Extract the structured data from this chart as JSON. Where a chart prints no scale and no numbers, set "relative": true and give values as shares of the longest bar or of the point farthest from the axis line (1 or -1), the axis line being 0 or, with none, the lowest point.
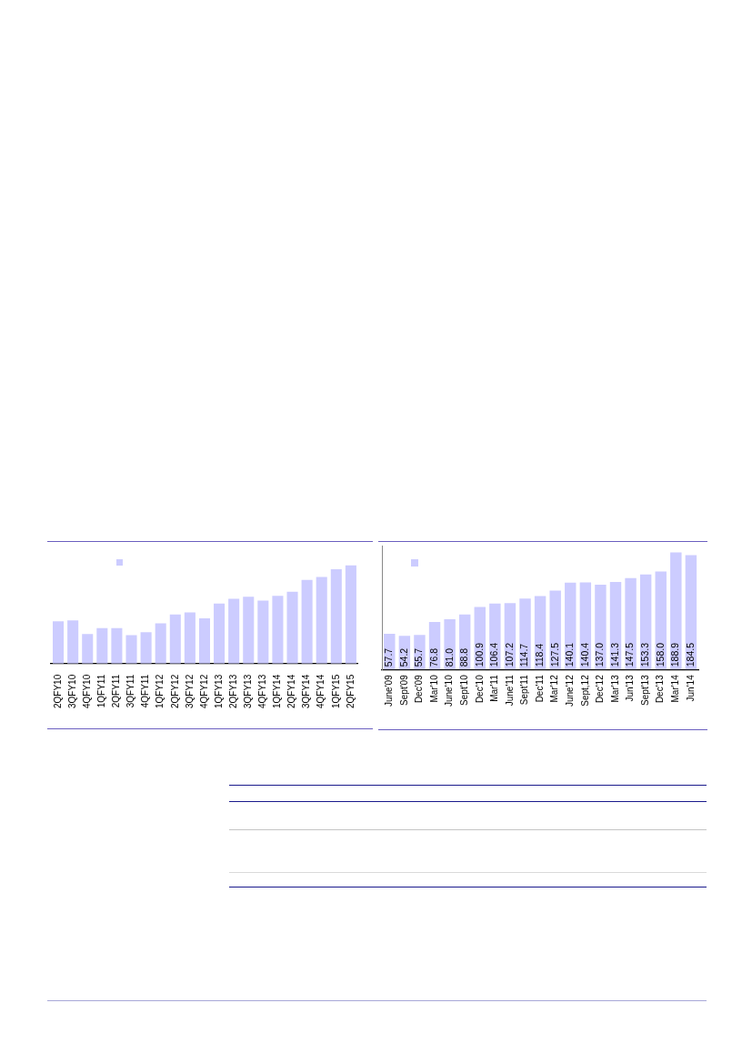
{
  "chart_data": [
    {
      "type": "bar",
      "relative": true,
      "categories": [
        "2QFY10",
        "3QFY10",
        "4QFY10",
        "1QFY11",
        "2QFY11",
        "3QFY11",
        "4QFY11",
        "1QFY12",
        "2QFY12",
        "3QFY12",
        "4QFY12",
        "1QFY13",
        "2QFY13",
        "3QFY13",
        "4QFY13",
        "1QFY14",
        "2QFY14",
        "3QFY14",
        "4QFY14",
        "1QFY15",
        "2QFY15"
      ],
      "values": [
        0.43,
        0.44,
        0.3,
        0.36,
        0.36,
        0.29,
        0.32,
        0.41,
        0.5,
        0.52,
        0.46,
        0.61,
        0.66,
        0.68,
        0.64,
        0.69,
        0.73,
        0.85,
        0.88,
        0.96,
        1
      ],
      "color": "#ccccff"
    },
    {
      "type": "bar",
      "categories": [
        "June'09",
        "Sept'09",
        "Dec'09",
        "Mar'10",
        "June'10",
        "Sept'10",
        "Dec'10",
        "Mar'11",
        "June'11",
        "Sept'11",
        "Dec'11",
        "Mar'12",
        "June'12",
        "Sept,12",
        "Dec'12",
        "Mar'13",
        "Jun'13",
        "Sept'13",
        "Dec'13",
        "Mar'14",
        "Jun'14"
      ],
      "values": [
        57.7,
        54.2,
        55.7,
        76.8,
        81.0,
        88.8,
        100.9,
        106.4,
        107.2,
        114.7,
        118.4,
        127.5,
        140.1,
        140.4,
        137.0,
        141.3,
        147.5,
        153.3,
        158.0,
        188.9,
        184.5
      ],
      "value_labels": [
        "57.7",
        "54.2",
        "55.7",
        "76.8",
        "81.0",
        "88.8",
        "100.9",
        "106.4",
        "107.2",
        "114.7",
        "118.4",
        "127.5",
        "140.1",
        "140.4",
        "137.0",
        "141.3",
        "147.5",
        "153.3",
        "158.0",
        "188.9",
        "184.5"
      ],
      "color": "#ccccff",
      "ylim": [
        0,
        200
      ],
      "tick_labels": "x"
    }
  ]
}
